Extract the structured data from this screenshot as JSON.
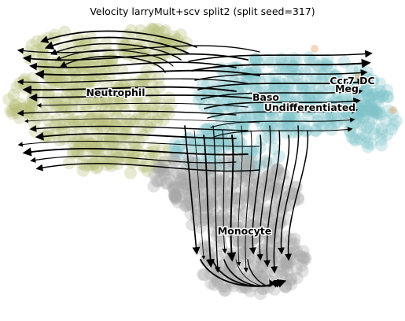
{
  "chart_data": {
    "type": "scatter",
    "title": "Velocity larryMult+scv split2 (split seed=317)",
    "xlabel": "",
    "ylabel": "",
    "grid": false,
    "axes_visible": false,
    "overlay": "velocity streamlines with arrowheads",
    "colors": {
      "neutrophil": "#b7bd78",
      "progenitor": "#7fc4cb",
      "monocyte": "#a9a9a9",
      "accent": "#e9b07a",
      "stream": "#000000"
    },
    "clusters": [
      {
        "name": "Neutrophil",
        "color": "#b7bd78"
      },
      {
        "name": "Baso",
        "color": "#7fc4cb"
      },
      {
        "name": "Undifferentiated",
        "color": "#7fc4cb"
      },
      {
        "name": "Ccr7_DC",
        "color": "#7fc4cb"
      },
      {
        "name": "Meg",
        "color": "#7fc4cb"
      },
      {
        "name": "Monocyte",
        "color": "#a9a9a9"
      }
    ]
  }
}
